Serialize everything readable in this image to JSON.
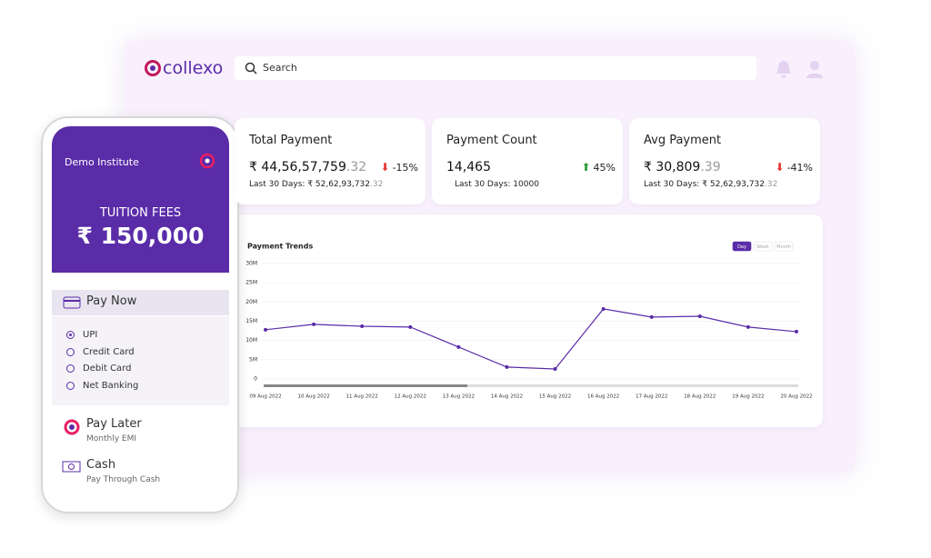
{
  "header": {
    "logo": "collexo",
    "search": "Search"
  },
  "cards": [
    {
      "title": "Total Payment",
      "value": "₹ 44,56,57,759",
      "decimals": ".32",
      "change": "-15%",
      "last30_label": "Last 30 Days:",
      "last30_value": "₹ 52,62,93,732",
      "last30_decimals": ".32"
    },
    {
      "title": "Payment Count",
      "value": "14,465",
      "change": "45%",
      "last30_label": "Last 30 Days:",
      "last30_value": "10000"
    },
    {
      "title": "Avg Payment",
      "value": "₹ 30,809",
      "decimals": ".39",
      "change": "-41%",
      "last30_label": "Last 30 Days:",
      "last30_value": "₹ 52,62,93,732",
      "last30_decimals": ".32"
    }
  ],
  "chart_data": {
    "type": "line",
    "title": "Payment Trends",
    "toggles": [
      "Day",
      "Week",
      "Month"
    ],
    "categories": [
      "09 Aug 2022",
      "10 Aug 2022",
      "11 Aug 2022",
      "12 Aug 2022",
      "13 Aug 2022",
      "14 Aug 2022",
      "15 Aug 2022",
      "16 Aug 2022",
      "17 Aug 2022",
      "18 Aug 2022",
      "19 Aug 2022",
      "20 Aug 2022"
    ],
    "series": [
      {
        "color": "#5a2ca8",
        "values": [
          12.8,
          14.2,
          13.7,
          13.5,
          8.3,
          3.1,
          2.6,
          18.2,
          16.1,
          16.3,
          13.5,
          12.3
        ]
      }
    ],
    "ylim": [
      0,
      30
    ],
    "yticks": [
      0,
      {
        "value": 5,
        "label": "5M"
      },
      {
        "value": 10,
        "label": "10M"
      },
      {
        "value": 15,
        "label": "15M"
      },
      {
        "value": 20,
        "label": "20M"
      },
      {
        "value": 25,
        "label": "25M"
      },
      {
        "value": 30,
        "label": "30M"
      }
    ],
    "grid": true
  },
  "phone": {
    "institute": "Demo Institute",
    "fee_title": "TUITION FEES",
    "fee_amount": "₹ 150,000",
    "pay_now": "Pay Now",
    "options": [
      "UPI",
      "Credit Card",
      "Debit Card",
      "Net Banking"
    ],
    "pay_later": "Pay Later",
    "pay_later_sub": "Monthly EMI",
    "cash": "Cash",
    "cash_sub": "Pay Through Cash"
  }
}
